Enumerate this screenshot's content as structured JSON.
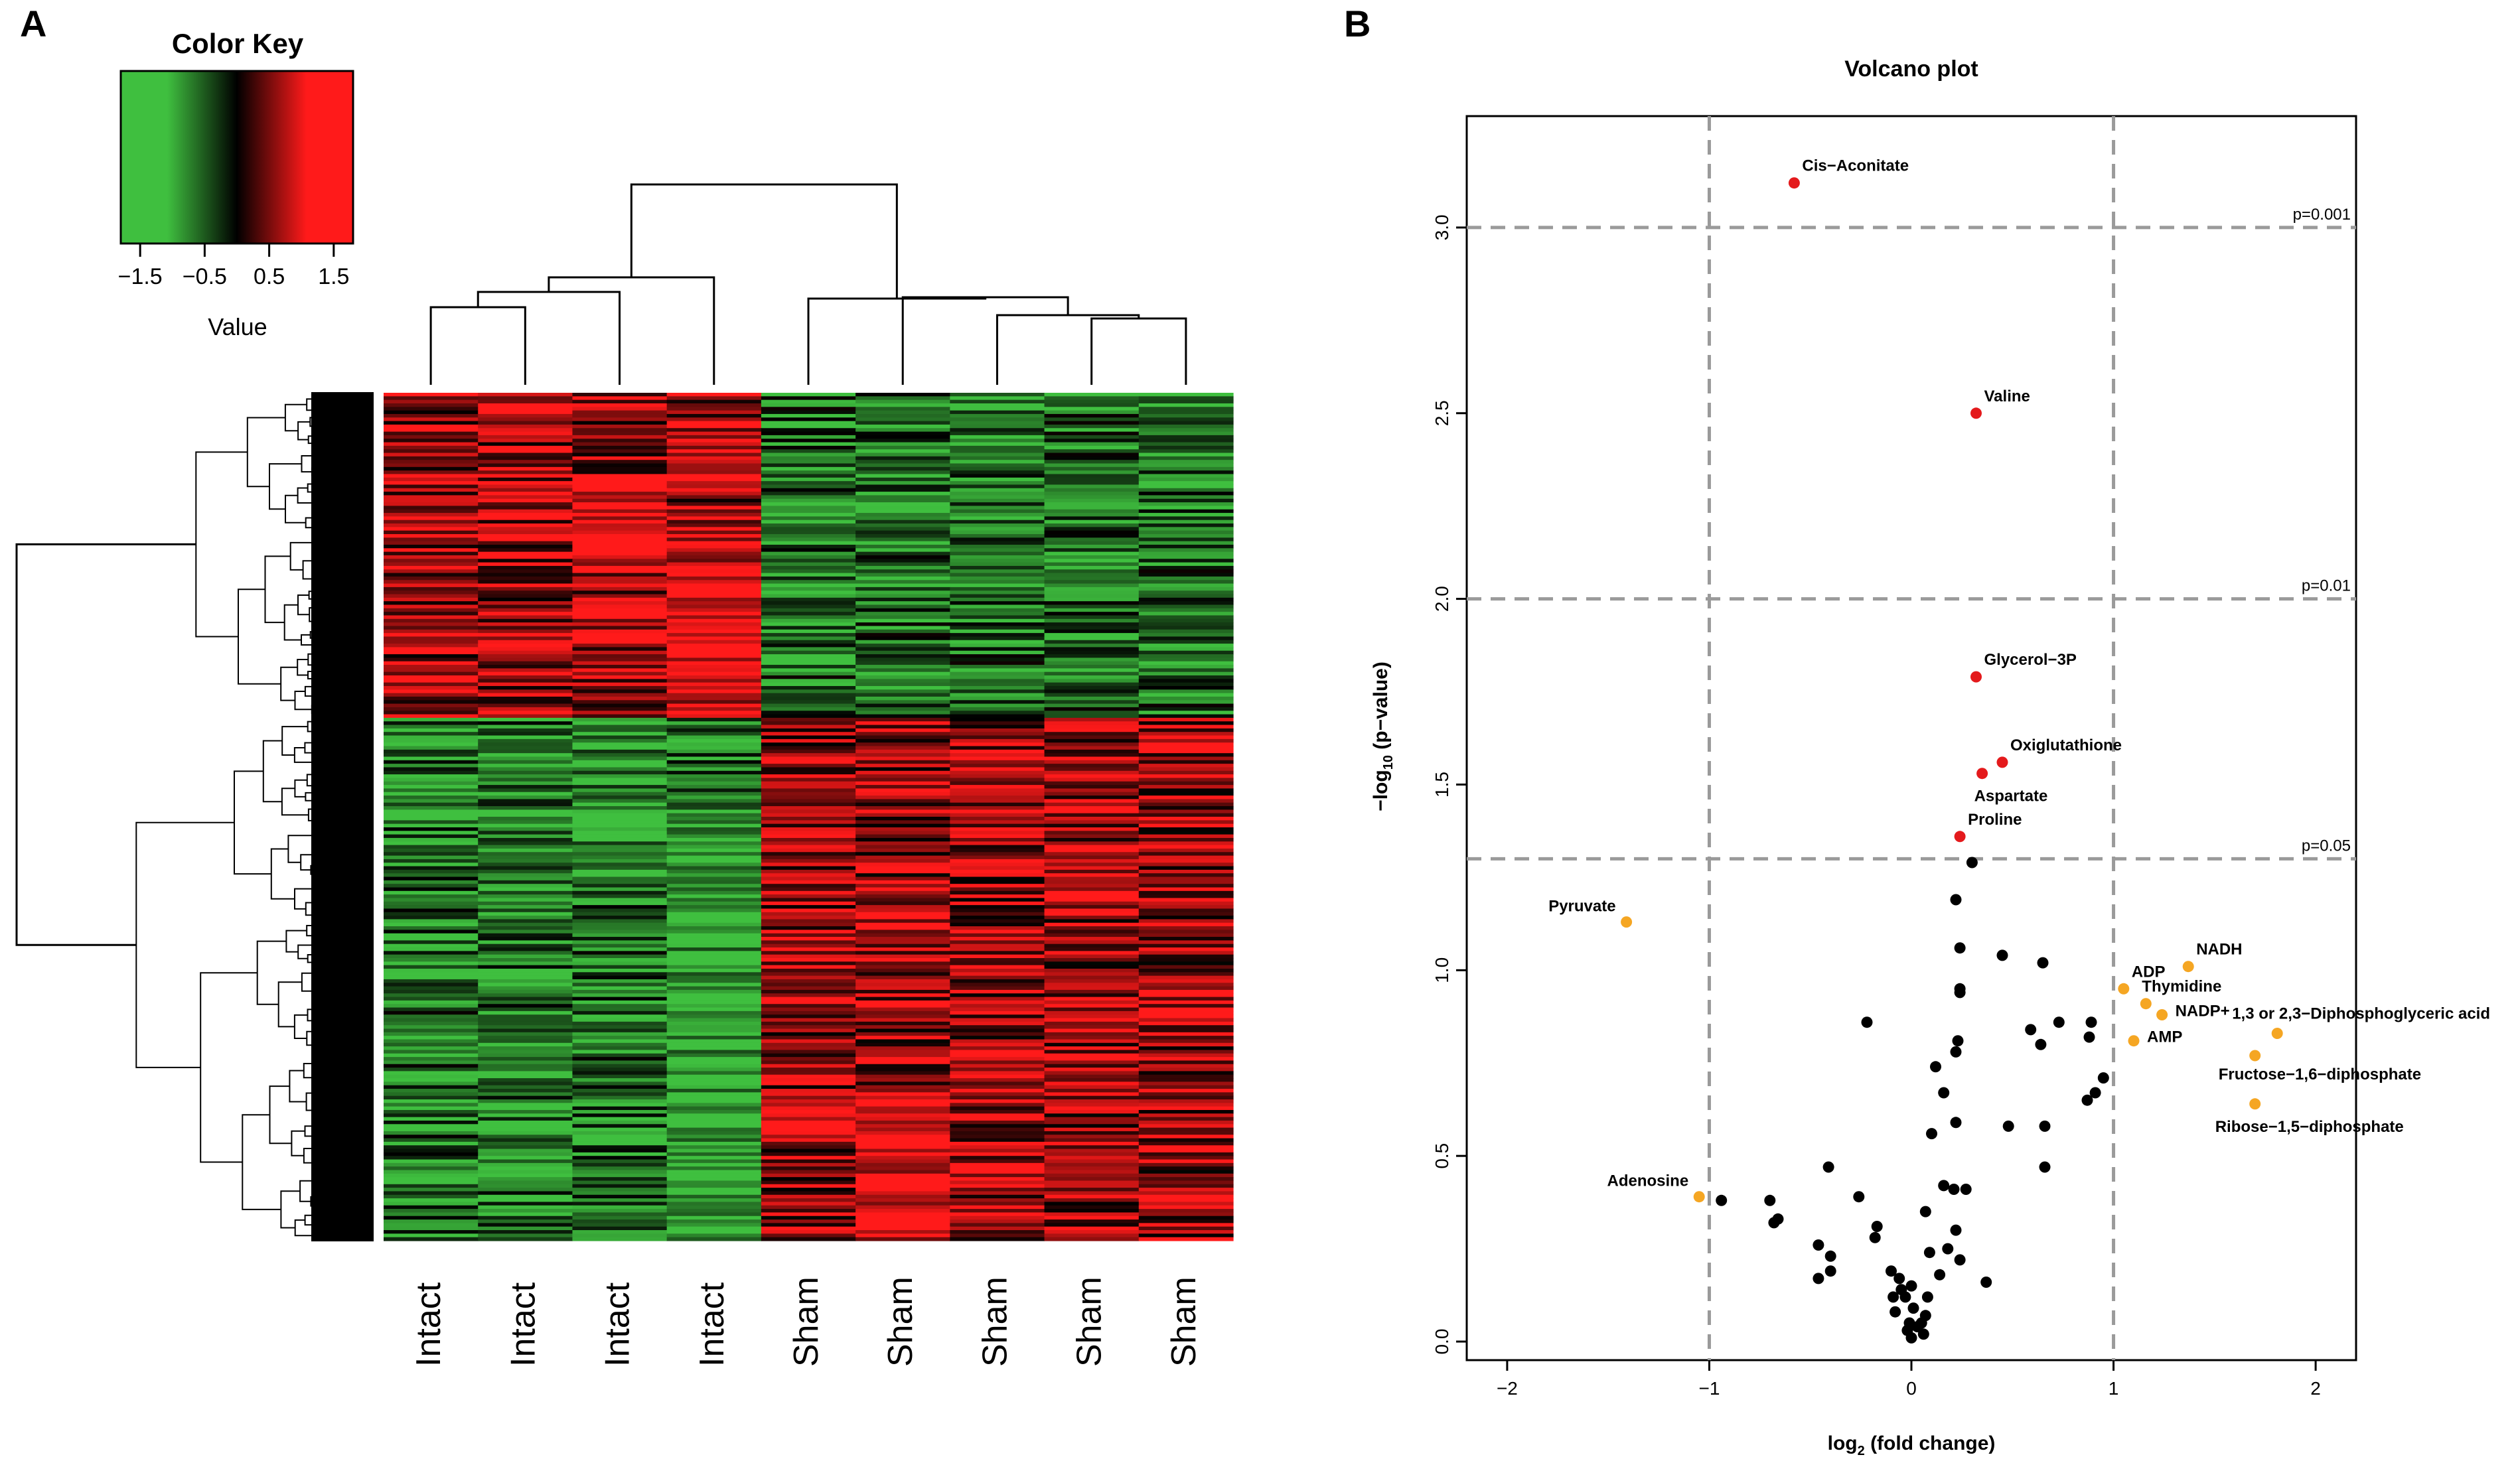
{
  "panels": {
    "a": "A",
    "b": "B"
  },
  "colors": {
    "low": "#3fbf3f",
    "mid": "#000000",
    "high": "#ff1a1a",
    "sig": "#e41a1c",
    "fold": "#f5a623",
    "other": "#000000",
    "guide": "#9a9a9a"
  },
  "heatmap": {
    "color_key": {
      "title": "Color Key",
      "xlabel": "Value",
      "range": [
        -1.8,
        1.8
      ],
      "ticks": [
        -1.5,
        -0.5,
        0.5,
        1.5
      ],
      "tick_labels": [
        "−1.5",
        "−0.5",
        "0.5",
        "1.5"
      ]
    },
    "columns": [
      "Intact",
      "Intact",
      "Intact",
      "Intact",
      "Sham",
      "Sham",
      "Sham",
      "Sham",
      "Sham"
    ],
    "groups": [
      "Intact",
      "Sham"
    ],
    "n_rows": 240
  },
  "chart_data": {
    "type": "scatter",
    "title": "Volcano plot",
    "xlabel_base": "log",
    "xlabel_sub": "2",
    "xlabel_rest": " (fold change)",
    "ylabel_pre": "−log",
    "ylabel_sub": "10",
    "ylabel_rest": " (p−value)",
    "xlim": [
      -2.2,
      2.2
    ],
    "ylim": [
      -0.05,
      3.3
    ],
    "xticks": [
      -2,
      -1,
      0,
      1,
      2
    ],
    "xtick_labels": [
      "−2",
      "−1",
      "0",
      "1",
      "2"
    ],
    "yticks": [
      0,
      0.5,
      1,
      1.5,
      2,
      2.5,
      3
    ],
    "ytick_labels": [
      "0.0",
      "0.5",
      "1.0",
      "1.5",
      "2.0",
      "2.5",
      "3.0"
    ],
    "vlines": [
      -1,
      1
    ],
    "hlines": [
      {
        "y": 3.0,
        "label": "p=0.001"
      },
      {
        "y": 2.0,
        "label": "p=0.01"
      },
      {
        "y": 1.3,
        "label": "p=0.05"
      }
    ],
    "significant": [
      {
        "x": -0.58,
        "y": 3.12,
        "label": "Cis−Aconitate",
        "pos": "above"
      },
      {
        "x": 0.32,
        "y": 2.5,
        "label": "Valine",
        "pos": "above"
      },
      {
        "x": 0.32,
        "y": 1.79,
        "label": "Glycerol−3P",
        "pos": "above"
      },
      {
        "x": 0.45,
        "y": 1.56,
        "label": "Oxiglutathione",
        "pos": "above"
      },
      {
        "x": 0.35,
        "y": 1.53,
        "label": "Aspartate",
        "pos": "below"
      },
      {
        "x": 0.24,
        "y": 1.36,
        "label": "Proline",
        "pos": "above"
      }
    ],
    "fold_changed": [
      {
        "x": -1.41,
        "y": 1.13,
        "label": "Pyruvate",
        "pos": "above-left"
      },
      {
        "x": -1.05,
        "y": 0.39,
        "label": "Adenosine",
        "pos": "above-left"
      },
      {
        "x": 1.37,
        "y": 1.01,
        "label": "NADH",
        "pos": "above"
      },
      {
        "x": 1.05,
        "y": 0.95,
        "label": "ADP",
        "pos": "above"
      },
      {
        "x": 1.16,
        "y": 0.91,
        "label": "Thymidine",
        "pos": "above-right"
      },
      {
        "x": 1.24,
        "y": 0.88,
        "label": "NADP+",
        "pos": "right"
      },
      {
        "x": 1.81,
        "y": 0.83,
        "label": "1,3 or 2,3−Diphosphoglyceric acid",
        "pos": "above"
      },
      {
        "x": 1.1,
        "y": 0.81,
        "label": "AMP",
        "pos": "right"
      },
      {
        "x": 1.7,
        "y": 0.77,
        "label": "Fructose−1,6−diphosphate",
        "pos": "below"
      },
      {
        "x": 1.7,
        "y": 0.64,
        "label": "Ribose−1,5−diphosphate",
        "pos": "below"
      }
    ],
    "others": [
      [
        0.3,
        1.29
      ],
      [
        0.22,
        1.19
      ],
      [
        0.45,
        1.04
      ],
      [
        0.65,
        1.02
      ],
      [
        0.24,
        1.06
      ],
      [
        0.73,
        0.86
      ],
      [
        0.24,
        0.95
      ],
      [
        0.24,
        0.94
      ],
      [
        0.89,
        0.86
      ],
      [
        0.88,
        0.82
      ],
      [
        0.59,
        0.84
      ],
      [
        -0.22,
        0.86
      ],
      [
        0.64,
        0.8
      ],
      [
        0.23,
        0.81
      ],
      [
        0.22,
        0.78
      ],
      [
        0.95,
        0.71
      ],
      [
        0.12,
        0.74
      ],
      [
        0.91,
        0.67
      ],
      [
        0.87,
        0.65
      ],
      [
        0.16,
        0.67
      ],
      [
        0.22,
        0.59
      ],
      [
        0.48,
        0.58
      ],
      [
        0.66,
        0.58
      ],
      [
        0.1,
        0.56
      ],
      [
        -0.41,
        0.47
      ],
      [
        0.66,
        0.47
      ],
      [
        0.16,
        0.42
      ],
      [
        0.21,
        0.41
      ],
      [
        0.27,
        0.41
      ],
      [
        -0.26,
        0.39
      ],
      [
        -0.94,
        0.38
      ],
      [
        -0.7,
        0.38
      ],
      [
        -0.68,
        0.32
      ],
      [
        -0.66,
        0.33
      ],
      [
        0.07,
        0.35
      ],
      [
        -0.17,
        0.31
      ],
      [
        -0.18,
        0.28
      ],
      [
        0.22,
        0.3
      ],
      [
        0.09,
        0.24
      ],
      [
        -0.46,
        0.26
      ],
      [
        0.18,
        0.25
      ],
      [
        -0.4,
        0.23
      ],
      [
        0.24,
        0.22
      ],
      [
        -0.4,
        0.19
      ],
      [
        -0.46,
        0.17
      ],
      [
        -0.1,
        0.19
      ],
      [
        0.14,
        0.18
      ],
      [
        -0.06,
        0.17
      ],
      [
        0.37,
        0.16
      ],
      [
        0.0,
        0.15
      ],
      [
        -0.05,
        0.14
      ],
      [
        -0.09,
        0.12
      ],
      [
        -0.03,
        0.12
      ],
      [
        -0.08,
        0.08
      ],
      [
        0.08,
        0.12
      ],
      [
        0.01,
        0.09
      ],
      [
        0.07,
        0.07
      ],
      [
        -0.01,
        0.05
      ],
      [
        0.03,
        0.04
      ],
      [
        0.05,
        0.05
      ],
      [
        0.06,
        0.02
      ],
      [
        0.0,
        0.01
      ],
      [
        -0.02,
        0.03
      ]
    ]
  }
}
